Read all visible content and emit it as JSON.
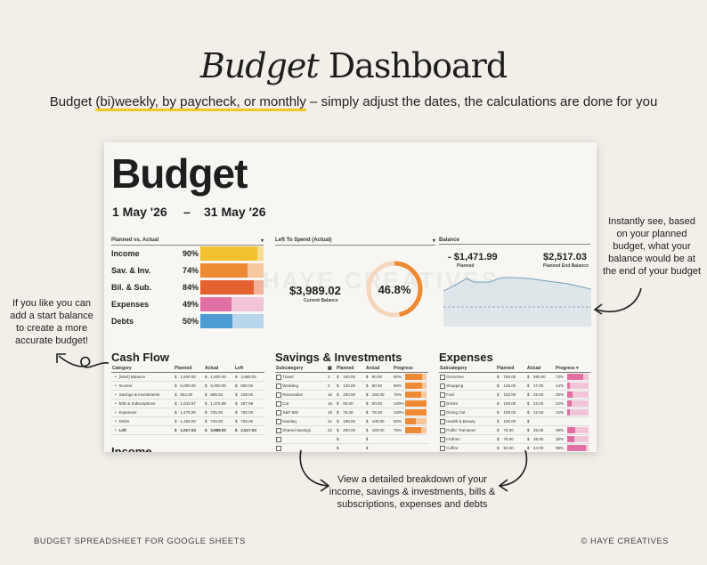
{
  "header": {
    "title_italic": "Budget",
    "title_rest": "Dashboard",
    "subtitle_pre": "Budget ",
    "subtitle_highlight": "(bi)weekly, by paycheck, or monthly",
    "subtitle_post": " – simply adjust the dates, the calculations are done for you"
  },
  "sheet": {
    "title": "Budget",
    "start_date": "1 May '26",
    "dash": "–",
    "end_date": "31 May '26",
    "watermark": "HAYE CREATIVES",
    "planned_vs_actual": {
      "heading": "Planned vs. Actual",
      "rows": [
        {
          "label": "Income",
          "pct": "90%",
          "fill": 0.9,
          "color": "#f3c12f",
          "bg": "#f7dd8f"
        },
        {
          "label": "Sav. & Inv.",
          "pct": "74%",
          "fill": 0.74,
          "color": "#ee8a33",
          "bg": "#f7c69c"
        },
        {
          "label": "Bil. & Sub.",
          "pct": "84%",
          "fill": 0.84,
          "color": "#e4622f",
          "bg": "#f2b19a"
        },
        {
          "label": "Expenses",
          "pct": "49%",
          "fill": 0.49,
          "color": "#e06fa4",
          "bg": "#f2c4d8"
        },
        {
          "label": "Debts",
          "pct": "50%",
          "fill": 0.5,
          "color": "#4d9bd3",
          "bg": "#b7d6ec"
        }
      ]
    },
    "left_to_spend": {
      "heading": "Left To Spend (Actual)",
      "value": "$3,989.02",
      "caption": "Current Balance",
      "pct": "46.8%",
      "fraction": 0.468
    },
    "balance": {
      "heading": "Balance",
      "planned_value": "- $1,471.99",
      "planned_caption": "Planned",
      "end_value": "$2,517.03",
      "end_caption": "Planned End Balance"
    },
    "cash_flow": {
      "title": "Cash Flow",
      "columns": [
        "Category",
        "Planned",
        "Actual",
        "Left"
      ],
      "rows": [
        [
          "[Start] Balance",
          "$",
          "1,500.00",
          "$",
          "1,500.00",
          "$",
          "3,989.02"
        ],
        [
          "Income",
          "$",
          "5,000.00",
          "$",
          "6,000.00",
          "$",
          "500.00"
        ],
        [
          "Savings & Investments",
          "$",
          "924.00",
          "$",
          "685.00",
          "$",
          "239.00"
        ],
        [
          "Bills & Subscriptions",
          "$",
          "1,633.97",
          "$",
          "1,375.98",
          "$",
          "257.99"
        ],
        [
          "Expenses",
          "$",
          "1,475.00",
          "$",
          "725.00",
          "$",
          "750.00"
        ],
        [
          "Debts",
          "$",
          "1,450.00",
          "$",
          "725.00",
          "$",
          "725.00"
        ],
        [
          "Left",
          "$",
          "1,017.03",
          "$",
          "3,989.02",
          "$",
          "2,517.03"
        ]
      ],
      "next_title": "Income"
    },
    "savings": {
      "title": "Savings & Investments",
      "columns": [
        "Subcategory",
        "Planned",
        "Actual",
        "Progress"
      ],
      "rows": [
        {
          "name": "Travel",
          "day": "2",
          "planned": "100.00",
          "actual": "80.00",
          "pct": "80%",
          "fill": 0.8
        },
        {
          "name": "Wedding",
          "day": "2",
          "planned": "100.00",
          "actual": "80.00",
          "pct": "80%",
          "fill": 0.8
        },
        {
          "name": "Renovation",
          "day": "16",
          "planned": "200.00",
          "actual": "150.00",
          "pct": "75%",
          "fill": 0.75
        },
        {
          "name": "Car",
          "day": "16",
          "planned": "50.00",
          "actual": "50.00",
          "pct": "100%",
          "fill": 1.0
        },
        {
          "name": "S&P 500",
          "day": "19",
          "planned": "75.00",
          "actual": "75.00",
          "pct": "100%",
          "fill": 1.0
        },
        {
          "name": "Nasdaq",
          "day": "21",
          "planned": "199.00",
          "actual": "100.00",
          "pct": "50%",
          "fill": 0.5
        },
        {
          "name": "Shared Savings",
          "day": "22",
          "planned": "200.00",
          "actual": "150.00",
          "pct": "75%",
          "fill": 0.75
        },
        {
          "name": "",
          "day": "",
          "planned": "",
          "actual": "",
          "pct": "",
          "fill": 0
        },
        {
          "name": "",
          "day": "",
          "planned": "",
          "actual": "",
          "pct": "",
          "fill": 0
        }
      ],
      "bar_color": "#ee8a33",
      "bar_bg": "#f7c69c"
    },
    "expenses": {
      "title": "Expenses",
      "columns": [
        "Subcategory",
        "Planned",
        "Actual",
        "Progress"
      ],
      "rows": [
        {
          "name": "Groceries",
          "planned": "750.00",
          "actual": "550.00",
          "pct": "73%",
          "fill": 0.73
        },
        {
          "name": "Shopping",
          "planned": "125.00",
          "actual": "17.00",
          "pct": "14%",
          "fill": 0.14
        },
        {
          "name": "Fuel",
          "planned": "100.00",
          "actual": "25.00",
          "pct": "25%",
          "fill": 0.25
        },
        {
          "name": "Drinks",
          "planned": "100.00",
          "actual": "22.00",
          "pct": "22%",
          "fill": 0.22
        },
        {
          "name": "Dining Out",
          "planned": "100.00",
          "actual": "12.00",
          "pct": "12%",
          "fill": 0.12
        },
        {
          "name": "Health & Beauty",
          "planned": "100.00",
          "actual": "",
          "pct": "",
          "fill": 0
        },
        {
          "name": "Public Transport",
          "planned": "75.00",
          "actual": "29.00",
          "pct": "39%",
          "fill": 0.39
        },
        {
          "name": "Clothes",
          "planned": "75.00",
          "actual": "26.00",
          "pct": "35%",
          "fill": 0.35
        },
        {
          "name": "Coffee",
          "planned": "50.00",
          "actual": "44.00",
          "pct": "88%",
          "fill": 0.88
        }
      ],
      "bar_color": "#e06fa4",
      "bar_bg": "#f2c4d8"
    }
  },
  "notes": {
    "right": "Instantly see, based on your planned budget, what your balance would be at the end of your budget",
    "left": "If you like you can add a start balance to create a more accurate budget!",
    "bottom": "View a detailed breakdown of your income, savings & investments, bills & subscriptions, expenses and debts"
  },
  "footer": {
    "left": "BUDGET SPREADSHEET FOR GOOGLE SHEETS",
    "right": "© HAYE CREATIVES"
  }
}
